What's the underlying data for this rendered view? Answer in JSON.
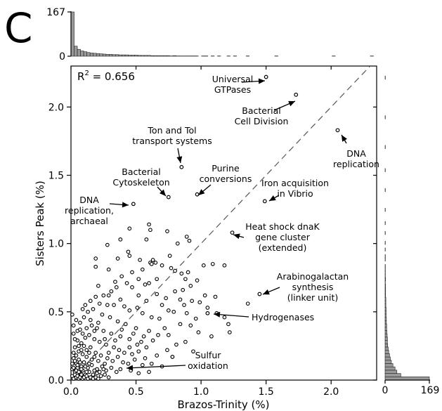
{
  "panel_label": "C",
  "chart_data": {
    "type": "scatter",
    "xlabel": "Brazos-Trinity (%)",
    "ylabel": "Sisters Peak (%)",
    "xlim": [
      0.0,
      2.35
    ],
    "ylim": [
      0.0,
      2.3
    ],
    "x_ticks": [
      0.0,
      0.5,
      1.0,
      1.5,
      2.0
    ],
    "x_tick_labels": [
      "0.0",
      "0.5",
      "1.0",
      "1.5",
      "2.0"
    ],
    "y_ticks": [
      0.0,
      0.5,
      1.0,
      1.5,
      2.0
    ],
    "y_tick_labels": [
      "0.0",
      "0.5",
      "1.0",
      "1.5",
      "2.0"
    ],
    "r2_label": "R",
    "r2_sup": "2",
    "r2_value": " = 0.656",
    "diagonal_line": {
      "from": [
        0.0,
        0.0
      ],
      "to": [
        2.3,
        2.3
      ],
      "style": "dashed"
    },
    "top_histogram": {
      "max_label": "167",
      "zero_label": "0",
      "counts": [
        167,
        38,
        26,
        20,
        17,
        14,
        12,
        11,
        10,
        9,
        8,
        7,
        7,
        6,
        6,
        5,
        5,
        5,
        4,
        4,
        4,
        3,
        3,
        3,
        3,
        2,
        2,
        2,
        2,
        2,
        2,
        1,
        2,
        1,
        1,
        1,
        1,
        1,
        1,
        1,
        0,
        1,
        1,
        0,
        1,
        0,
        1,
        0,
        0,
        1,
        0,
        1,
        0,
        0,
        0,
        1,
        0,
        0,
        0,
        0,
        0,
        0,
        0,
        0,
        1,
        0,
        0,
        0,
        0,
        0,
        0,
        0,
        0,
        0,
        0,
        0,
        0,
        0,
        0,
        0,
        0,
        0,
        1,
        0,
        0,
        0,
        0,
        0,
        0,
        0,
        0,
        0,
        0,
        0,
        1,
        0
      ]
    },
    "right_histogram": {
      "max_label": "169",
      "zero_label": "0",
      "counts": [
        169,
        60,
        45,
        38,
        30,
        24,
        20,
        17,
        14,
        12,
        10,
        9,
        9,
        8,
        7,
        6,
        6,
        5,
        5,
        4,
        4,
        4,
        3,
        3,
        3,
        2,
        2,
        2,
        2,
        1,
        2,
        1,
        1,
        1,
        1,
        0,
        1,
        1,
        0,
        1,
        0,
        1,
        0,
        0,
        1,
        0,
        0,
        1,
        0,
        0,
        0,
        1,
        0,
        0,
        0,
        0,
        0,
        1,
        0,
        0,
        0,
        0,
        0,
        1,
        0,
        0,
        0,
        0,
        0,
        0,
        1,
        0,
        0,
        0,
        0,
        0,
        0,
        0,
        0,
        1,
        0,
        0,
        0,
        0,
        0,
        0,
        0,
        0,
        0,
        0,
        0,
        1,
        0,
        0,
        0
      ]
    },
    "annotated_points": [
      {
        "label_lines": [
          "Universal",
          "GTPases"
        ],
        "x": 1.5,
        "y": 2.22
      },
      {
        "label_lines": [
          "Bacterial",
          "Cell Division"
        ],
        "x": 1.73,
        "y": 2.09
      },
      {
        "label_lines": [
          "DNA",
          "replication"
        ],
        "x": 2.05,
        "y": 1.83
      },
      {
        "label_lines": [
          "Ton and Tol",
          "transport systems"
        ],
        "x": 0.85,
        "y": 1.56
      },
      {
        "label_lines": [
          "Purine",
          "conversions"
        ],
        "x": 0.97,
        "y": 1.36
      },
      {
        "label_lines": [
          "Bacterial",
          "Cytoskeleton"
        ],
        "x": 0.75,
        "y": 1.34
      },
      {
        "label_lines": [
          "Iron acquisition",
          "in Vibrio"
        ],
        "x": 1.49,
        "y": 1.31
      },
      {
        "label_lines": [
          "DNA",
          "replication,",
          "archaeal"
        ],
        "x": 0.48,
        "y": 1.29
      },
      {
        "label_lines": [
          "Heat shock dnaK",
          "gene cluster",
          "(extended)"
        ],
        "x": 1.24,
        "y": 1.08
      },
      {
        "label_lines": [
          "Arabinogalactan",
          "synthesis",
          "(linker unit)"
        ],
        "x": 1.45,
        "y": 0.63
      },
      {
        "label_lines": [
          "Hydrogenases"
        ],
        "x": 1.05,
        "y": 0.49
      },
      {
        "label_lines": [
          "Sulfur",
          "oxidation"
        ],
        "x": 0.78,
        "y": 0.17
      }
    ],
    "points": [
      [
        0.6,
        1.14
      ],
      [
        0.61,
        1.1
      ],
      [
        0.58,
        1.03
      ],
      [
        0.74,
        1.09
      ],
      [
        0.89,
        1.05
      ],
      [
        0.82,
        1.0
      ],
      [
        0.91,
        1.02
      ],
      [
        0.45,
        1.11
      ],
      [
        0.38,
        1.03
      ],
      [
        0.44,
        0.94
      ],
      [
        0.28,
        0.99
      ],
      [
        0.19,
        0.89
      ],
      [
        0.19,
        0.83
      ],
      [
        0.29,
        0.81
      ],
      [
        0.36,
        0.89
      ],
      [
        0.45,
        0.91
      ],
      [
        0.53,
        0.88
      ],
      [
        0.61,
        0.86
      ],
      [
        0.63,
        0.88
      ],
      [
        0.65,
        0.86
      ],
      [
        0.62,
        0.85
      ],
      [
        0.7,
        0.84
      ],
      [
        0.77,
        0.82
      ],
      [
        0.8,
        0.8
      ],
      [
        0.85,
        0.78
      ],
      [
        0.9,
        0.79
      ],
      [
        1.02,
        0.84
      ],
      [
        1.09,
        0.85
      ],
      [
        1.18,
        0.84
      ],
      [
        0.76,
        0.91
      ],
      [
        0.88,
        0.74
      ],
      [
        0.55,
        0.81
      ],
      [
        0.21,
        0.69
      ],
      [
        0.29,
        0.62
      ],
      [
        0.35,
        0.68
      ],
      [
        0.43,
        0.71
      ],
      [
        0.47,
        0.68
      ],
      [
        0.52,
        0.62
      ],
      [
        0.58,
        0.58
      ],
      [
        0.6,
        0.71
      ],
      [
        0.66,
        0.74
      ],
      [
        0.28,
        0.55
      ],
      [
        0.33,
        0.55
      ],
      [
        0.38,
        0.59
      ],
      [
        0.41,
        0.54
      ],
      [
        0.45,
        0.51
      ],
      [
        0.51,
        0.53
      ],
      [
        0.55,
        0.49
      ],
      [
        0.62,
        0.46
      ],
      [
        0.68,
        0.45
      ],
      [
        0.7,
        0.55
      ],
      [
        0.75,
        0.51
      ],
      [
        0.79,
        0.5
      ],
      [
        0.84,
        0.59
      ],
      [
        0.87,
        0.55
      ],
      [
        0.89,
        0.49
      ],
      [
        0.93,
        0.58
      ],
      [
        0.96,
        0.45
      ],
      [
        0.99,
        0.57
      ],
      [
        1.05,
        0.53
      ],
      [
        1.12,
        0.49
      ],
      [
        1.18,
        0.46
      ],
      [
        1.21,
        0.41
      ],
      [
        1.22,
        0.35
      ],
      [
        1.36,
        0.56
      ],
      [
        0.72,
        0.38
      ],
      [
        0.67,
        0.33
      ],
      [
        0.6,
        0.36
      ],
      [
        0.5,
        0.38
      ],
      [
        0.42,
        0.41
      ],
      [
        0.36,
        0.43
      ],
      [
        0.3,
        0.46
      ],
      [
        0.24,
        0.48
      ],
      [
        0.17,
        0.52
      ],
      [
        0.13,
        0.5
      ],
      [
        0.1,
        0.46
      ],
      [
        0.07,
        0.42
      ],
      [
        0.16,
        0.4
      ],
      [
        0.2,
        0.38
      ],
      [
        0.25,
        0.36
      ],
      [
        0.31,
        0.34
      ],
      [
        0.38,
        0.32
      ],
      [
        0.45,
        0.3
      ],
      [
        0.54,
        0.28
      ],
      [
        0.58,
        0.24
      ],
      [
        0.05,
        0.29
      ],
      [
        0.08,
        0.27
      ],
      [
        0.11,
        0.31
      ],
      [
        0.14,
        0.33
      ],
      [
        0.18,
        0.3
      ],
      [
        0.22,
        0.28
      ],
      [
        0.27,
        0.26
      ],
      [
        0.33,
        0.24
      ],
      [
        0.37,
        0.22
      ],
      [
        0.41,
        0.2
      ],
      [
        0.47,
        0.19
      ],
      [
        0.52,
        0.21
      ],
      [
        0.02,
        0.34
      ],
      [
        0.03,
        0.24
      ],
      [
        0.06,
        0.21
      ],
      [
        0.09,
        0.19
      ],
      [
        0.12,
        0.22
      ],
      [
        0.15,
        0.24
      ],
      [
        0.19,
        0.2
      ],
      [
        0.23,
        0.18
      ],
      [
        0.28,
        0.16
      ],
      [
        0.32,
        0.14
      ],
      [
        0.36,
        0.17
      ],
      [
        0.4,
        0.13
      ],
      [
        0.44,
        0.12
      ],
      [
        0.49,
        0.15
      ],
      [
        0.55,
        0.11
      ],
      [
        0.62,
        0.12
      ],
      [
        0.7,
        0.1
      ],
      [
        0.02,
        0.16
      ],
      [
        0.04,
        0.12
      ],
      [
        0.06,
        0.15
      ],
      [
        0.08,
        0.1
      ],
      [
        0.1,
        0.13
      ],
      [
        0.13,
        0.09
      ],
      [
        0.16,
        0.11
      ],
      [
        0.2,
        0.08
      ],
      [
        0.24,
        0.1
      ],
      [
        0.27,
        0.07
      ],
      [
        0.31,
        0.09
      ],
      [
        0.35,
        0.06
      ],
      [
        0.01,
        0.08
      ],
      [
        0.03,
        0.06
      ],
      [
        0.05,
        0.09
      ],
      [
        0.07,
        0.05
      ],
      [
        0.09,
        0.07
      ],
      [
        0.11,
        0.04
      ],
      [
        0.14,
        0.06
      ],
      [
        0.17,
        0.04
      ],
      [
        0.2,
        0.05
      ],
      [
        0.23,
        0.03
      ],
      [
        0.26,
        0.04
      ],
      [
        0.29,
        0.02
      ],
      [
        0.01,
        0.03
      ],
      [
        0.02,
        0.01
      ],
      [
        0.03,
        0.04
      ],
      [
        0.04,
        0.02
      ],
      [
        0.05,
        0.03
      ],
      [
        0.06,
        0.01
      ],
      [
        0.07,
        0.02
      ],
      [
        0.08,
        0.04
      ],
      [
        0.09,
        0.01
      ],
      [
        0.1,
        0.02
      ],
      [
        0.12,
        0.03
      ],
      [
        0.13,
        0.01
      ],
      [
        0.15,
        0.02
      ],
      [
        0.17,
        0.01
      ],
      [
        0.19,
        0.02
      ],
      [
        0.21,
        0.01
      ],
      [
        0.01,
        0.12
      ],
      [
        0.02,
        0.09
      ],
      [
        0.03,
        0.14
      ],
      [
        0.04,
        0.07
      ],
      [
        0.05,
        0.11
      ],
      [
        0.06,
        0.06
      ],
      [
        0.07,
        0.13
      ],
      [
        0.08,
        0.08
      ],
      [
        0.11,
        0.1
      ],
      [
        0.12,
        0.06
      ],
      [
        0.14,
        0.12
      ],
      [
        0.18,
        0.07
      ],
      [
        0.22,
        0.06
      ],
      [
        0.25,
        0.08
      ],
      [
        0.02,
        0.2
      ],
      [
        0.04,
        0.18
      ],
      [
        0.06,
        0.25
      ],
      [
        0.08,
        0.22
      ],
      [
        0.1,
        0.25
      ],
      [
        0.12,
        0.17
      ],
      [
        0.14,
        0.2
      ],
      [
        0.16,
        0.15
      ],
      [
        0.18,
        0.17
      ],
      [
        0.21,
        0.14
      ],
      [
        0.26,
        0.12
      ],
      [
        0.29,
        0.2
      ],
      [
        0.03,
        0.3
      ],
      [
        0.05,
        0.36
      ],
      [
        0.09,
        0.34
      ],
      [
        0.12,
        0.38
      ],
      [
        0.15,
        0.44
      ],
      [
        0.18,
        0.36
      ],
      [
        0.21,
        0.42
      ],
      [
        0.26,
        0.3
      ],
      [
        0.34,
        0.29
      ],
      [
        0.39,
        0.37
      ],
      [
        0.48,
        0.34
      ],
      [
        0.56,
        0.32
      ],
      [
        0.63,
        0.29
      ],
      [
        0.75,
        0.33
      ],
      [
        0.84,
        0.41
      ],
      [
        0.92,
        0.4
      ],
      [
        0.98,
        0.35
      ],
      [
        1.08,
        0.32
      ],
      [
        0.45,
        0.24
      ],
      [
        0.51,
        0.26
      ],
      [
        0.57,
        0.16
      ],
      [
        0.66,
        0.18
      ],
      [
        0.74,
        0.22
      ],
      [
        0.81,
        0.26
      ],
      [
        0.88,
        0.28
      ],
      [
        0.94,
        0.21
      ],
      [
        0.38,
        0.08
      ],
      [
        0.46,
        0.07
      ],
      [
        0.52,
        0.05
      ],
      [
        0.6,
        0.06
      ],
      [
        0.01,
        0.48
      ],
      [
        0.02,
        0.4
      ],
      [
        0.04,
        0.44
      ],
      [
        0.07,
        0.37
      ],
      [
        0.09,
        0.52
      ],
      [
        0.11,
        0.55
      ],
      [
        0.15,
        0.58
      ],
      [
        0.19,
        0.61
      ],
      [
        0.22,
        0.56
      ],
      [
        0.25,
        0.62
      ],
      [
        0.31,
        0.65
      ],
      [
        0.34,
        0.72
      ],
      [
        0.39,
        0.76
      ],
      [
        0.47,
        0.79
      ],
      [
        0.52,
        0.74
      ],
      [
        0.57,
        0.7
      ],
      [
        0.66,
        0.63
      ],
      [
        0.73,
        0.6
      ],
      [
        0.8,
        0.65
      ],
      [
        0.86,
        0.66
      ],
      [
        0.92,
        0.69
      ],
      [
        0.97,
        0.73
      ],
      [
        1.03,
        0.62
      ],
      [
        1.11,
        0.61
      ]
    ]
  }
}
